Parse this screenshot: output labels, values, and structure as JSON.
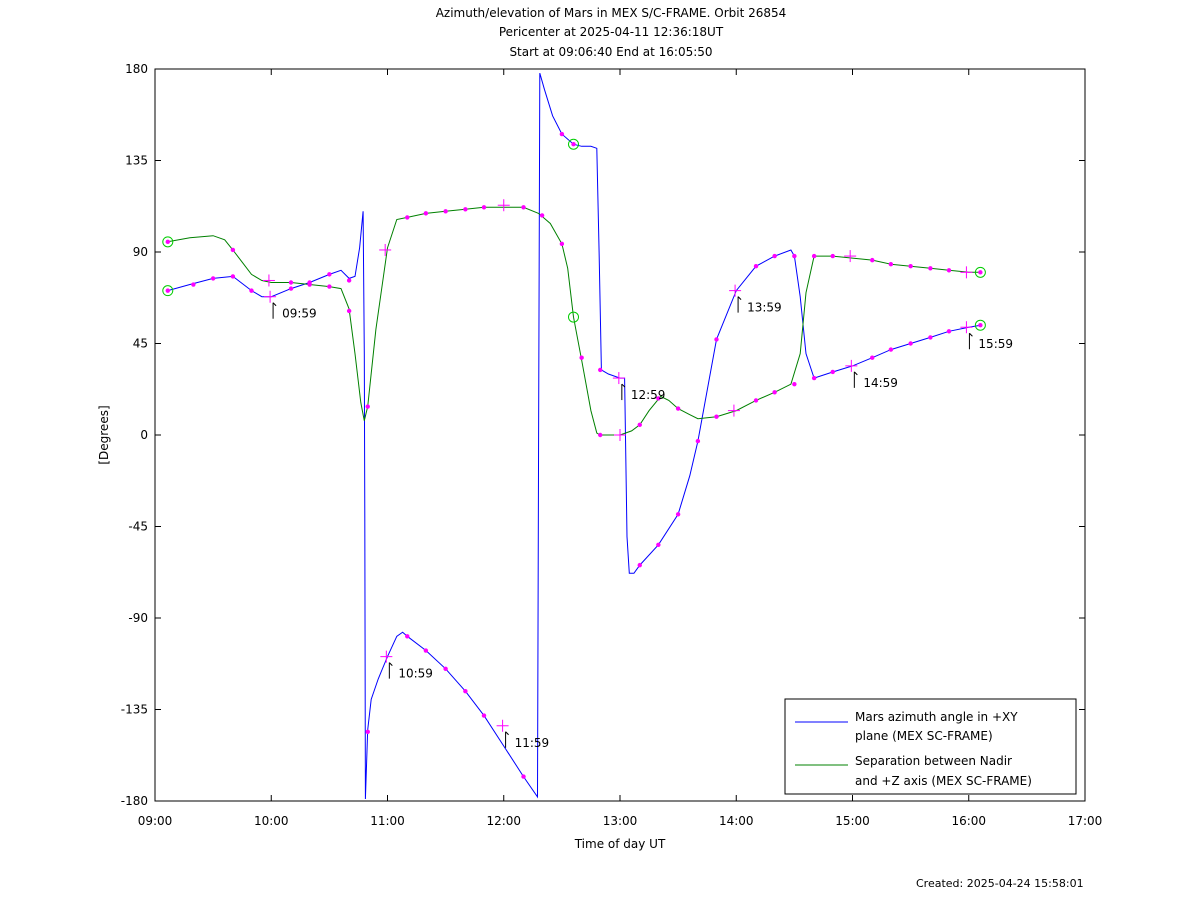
{
  "title": {
    "lines": [
      "Azimuth/elevation of Mars in MEX S/C-FRAME.  Orbit 26854",
      "Pericenter at 2025-04-11 12:36:18UT",
      "Start at 09:06:40 End at 16:05:50"
    ]
  },
  "footer": {
    "created": "Created: 2025-04-24 15:58:01"
  },
  "chart_data": {
    "type": "line",
    "xlabel": "Time of day UT",
    "ylabel": "[Degrees]",
    "x_unit": "hours of day UT",
    "xlim": [
      9.0,
      17.0
    ],
    "ylim": [
      -180,
      180
    ],
    "x_ticks": [
      9,
      10,
      11,
      12,
      13,
      14,
      15,
      16,
      17
    ],
    "x_tick_labels": [
      "09:00",
      "10:00",
      "11:00",
      "12:00",
      "13:00",
      "14:00",
      "15:00",
      "16:00",
      "17:00"
    ],
    "y_ticks": [
      180,
      135,
      90,
      45,
      0,
      -45,
      -90,
      -135,
      -180
    ],
    "y_tick_labels": [
      "180",
      "135",
      "90",
      "45",
      "0",
      "-45",
      "-90",
      "-135",
      "-180"
    ],
    "legend_position": "bottom-right",
    "series": [
      {
        "name": "Mars azimuth angle in +XY plane (MEX SC-FRAME)",
        "legend_lines": [
          "Mars azimuth angle in +XY",
          "plane (MEX SC-FRAME)"
        ],
        "color": "#0000ff",
        "points": [
          [
            9.11,
            71
          ],
          [
            9.3,
            74
          ],
          [
            9.5,
            77
          ],
          [
            9.67,
            78
          ],
          [
            9.83,
            71
          ],
          [
            9.92,
            68
          ],
          [
            10.0,
            68
          ],
          [
            10.17,
            72
          ],
          [
            10.33,
            75
          ],
          [
            10.5,
            79
          ],
          [
            10.6,
            81
          ],
          [
            10.67,
            77
          ],
          [
            10.72,
            78
          ],
          [
            10.76,
            92
          ],
          [
            10.79,
            110
          ],
          [
            10.8,
            40
          ],
          [
            10.805,
            -40
          ],
          [
            10.81,
            -179
          ],
          [
            10.83,
            -145
          ],
          [
            10.86,
            -130
          ],
          [
            10.92,
            -120
          ],
          [
            11.0,
            -109
          ],
          [
            11.08,
            -99
          ],
          [
            11.13,
            -97
          ],
          [
            11.17,
            -99
          ],
          [
            11.33,
            -106
          ],
          [
            11.5,
            -115
          ],
          [
            11.67,
            -126
          ],
          [
            11.83,
            -138
          ],
          [
            12.0,
            -153
          ],
          [
            12.17,
            -168
          ],
          [
            12.29,
            -178
          ],
          [
            12.3,
            0
          ],
          [
            12.31,
            178
          ],
          [
            12.35,
            170
          ],
          [
            12.42,
            157
          ],
          [
            12.5,
            148
          ],
          [
            12.6,
            143
          ],
          [
            12.67,
            142
          ],
          [
            12.75,
            142
          ],
          [
            12.8,
            141
          ],
          [
            12.82,
            90
          ],
          [
            12.84,
            32
          ],
          [
            12.9,
            30
          ],
          [
            13.0,
            28
          ],
          [
            13.04,
            28
          ],
          [
            13.06,
            -50
          ],
          [
            13.08,
            -68
          ],
          [
            13.12,
            -68
          ],
          [
            13.17,
            -64
          ],
          [
            13.33,
            -54
          ],
          [
            13.5,
            -39
          ],
          [
            13.6,
            -20
          ],
          [
            13.67,
            -3
          ],
          [
            13.83,
            47
          ],
          [
            14.0,
            71
          ],
          [
            14.17,
            83
          ],
          [
            14.33,
            88
          ],
          [
            14.47,
            91
          ],
          [
            14.5,
            88
          ],
          [
            14.55,
            68
          ],
          [
            14.6,
            40
          ],
          [
            14.67,
            28
          ],
          [
            14.83,
            31
          ],
          [
            15.0,
            34
          ],
          [
            15.17,
            38
          ],
          [
            15.33,
            42
          ],
          [
            15.5,
            45
          ],
          [
            15.67,
            48
          ],
          [
            15.83,
            51
          ],
          [
            16.0,
            53
          ],
          [
            16.1,
            54
          ]
        ],
        "markers": [
          [
            9.11,
            71
          ],
          [
            9.33,
            74
          ],
          [
            9.5,
            77
          ],
          [
            9.67,
            78
          ],
          [
            9.83,
            71
          ],
          [
            10.17,
            72
          ],
          [
            10.33,
            75
          ],
          [
            10.5,
            79
          ],
          [
            10.67,
            76
          ],
          [
            10.83,
            -146
          ],
          [
            11.17,
            -99
          ],
          [
            11.33,
            -106
          ],
          [
            11.5,
            -115
          ],
          [
            11.67,
            -126
          ],
          [
            11.83,
            -138
          ],
          [
            12.17,
            -168
          ],
          [
            12.5,
            148
          ],
          [
            12.6,
            143
          ],
          [
            12.83,
            32
          ],
          [
            13.17,
            -64
          ],
          [
            13.33,
            -54
          ],
          [
            13.5,
            -39
          ],
          [
            13.67,
            -3
          ],
          [
            13.83,
            47
          ],
          [
            14.17,
            83
          ],
          [
            14.33,
            88
          ],
          [
            14.5,
            88
          ],
          [
            14.67,
            28
          ],
          [
            14.83,
            31
          ],
          [
            15.17,
            38
          ],
          [
            15.33,
            42
          ],
          [
            15.5,
            45
          ],
          [
            15.67,
            48
          ],
          [
            15.83,
            51
          ],
          [
            16.1,
            54
          ]
        ]
      },
      {
        "name": "Separation between Nadir and +Z axis (MEX SC-FRAME)",
        "legend_lines": [
          "Separation between Nadir",
          "and +Z axis (MEX SC-FRAME)"
        ],
        "color": "#008000",
        "points": [
          [
            9.11,
            95
          ],
          [
            9.3,
            97
          ],
          [
            9.5,
            98
          ],
          [
            9.6,
            96
          ],
          [
            9.67,
            91
          ],
          [
            9.75,
            85
          ],
          [
            9.83,
            79
          ],
          [
            9.92,
            76
          ],
          [
            10.0,
            75
          ],
          [
            10.17,
            75
          ],
          [
            10.33,
            74
          ],
          [
            10.5,
            73
          ],
          [
            10.6,
            72
          ],
          [
            10.67,
            62
          ],
          [
            10.72,
            40
          ],
          [
            10.77,
            16
          ],
          [
            10.8,
            7
          ],
          [
            10.83,
            14
          ],
          [
            10.9,
            52
          ],
          [
            11.0,
            92
          ],
          [
            11.08,
            106
          ],
          [
            11.17,
            107
          ],
          [
            11.33,
            109
          ],
          [
            11.5,
            110
          ],
          [
            11.67,
            111
          ],
          [
            11.83,
            112
          ],
          [
            12.0,
            112
          ],
          [
            12.17,
            112
          ],
          [
            12.3,
            109
          ],
          [
            12.4,
            104
          ],
          [
            12.5,
            94
          ],
          [
            12.55,
            82
          ],
          [
            12.6,
            58
          ],
          [
            12.67,
            37
          ],
          [
            12.75,
            12
          ],
          [
            12.8,
            1
          ],
          [
            12.83,
            0
          ],
          [
            13.0,
            0
          ],
          [
            13.1,
            2
          ],
          [
            13.17,
            5
          ],
          [
            13.25,
            12
          ],
          [
            13.35,
            19
          ],
          [
            13.42,
            17
          ],
          [
            13.5,
            13
          ],
          [
            13.6,
            10
          ],
          [
            13.67,
            8
          ],
          [
            13.83,
            9
          ],
          [
            14.0,
            12
          ],
          [
            14.17,
            17
          ],
          [
            14.33,
            21
          ],
          [
            14.47,
            25
          ],
          [
            14.55,
            40
          ],
          [
            14.6,
            70
          ],
          [
            14.67,
            88
          ],
          [
            14.83,
            88
          ],
          [
            15.0,
            87
          ],
          [
            15.17,
            86
          ],
          [
            15.33,
            84
          ],
          [
            15.5,
            83
          ],
          [
            15.67,
            82
          ],
          [
            15.83,
            81
          ],
          [
            16.0,
            80
          ],
          [
            16.1,
            80
          ]
        ],
        "markers": [
          [
            9.11,
            95
          ],
          [
            9.67,
            91
          ],
          [
            10.17,
            75
          ],
          [
            10.33,
            74
          ],
          [
            10.5,
            73
          ],
          [
            10.67,
            61
          ],
          [
            10.83,
            14
          ],
          [
            11.17,
            107
          ],
          [
            11.33,
            109
          ],
          [
            11.5,
            110
          ],
          [
            11.67,
            111
          ],
          [
            11.83,
            112
          ],
          [
            12.17,
            112
          ],
          [
            12.33,
            108
          ],
          [
            12.5,
            94
          ],
          [
            12.67,
            38
          ],
          [
            12.83,
            0
          ],
          [
            13.17,
            5
          ],
          [
            13.33,
            18
          ],
          [
            13.5,
            13
          ],
          [
            13.83,
            9
          ],
          [
            14.17,
            17
          ],
          [
            14.33,
            21
          ],
          [
            14.5,
            25
          ],
          [
            14.67,
            88
          ],
          [
            14.83,
            88
          ],
          [
            15.17,
            86
          ],
          [
            15.33,
            84
          ],
          [
            15.5,
            83
          ],
          [
            15.67,
            82
          ],
          [
            15.83,
            81
          ],
          [
            16.1,
            80
          ]
        ]
      }
    ],
    "crosses": [
      [
        9.98,
        76
      ],
      [
        10.98,
        91
      ],
      [
        12.0,
        113
      ],
      [
        13.0,
        0
      ],
      [
        13.98,
        12
      ],
      [
        14.98,
        88
      ],
      [
        15.98,
        80
      ],
      [
        9.99,
        68
      ],
      [
        10.99,
        -109
      ],
      [
        11.99,
        -143
      ],
      [
        12.99,
        28
      ],
      [
        13.99,
        71
      ],
      [
        14.99,
        34
      ],
      [
        15.98,
        53
      ]
    ],
    "circles": [
      [
        9.11,
        95
      ],
      [
        9.11,
        71
      ],
      [
        12.6,
        143
      ],
      [
        12.6,
        58
      ],
      [
        16.1,
        80
      ],
      [
        16.1,
        54
      ]
    ],
    "annotations": [
      {
        "text": "09:59",
        "x": 9.99,
        "y": 68
      },
      {
        "text": "10:59",
        "x": 10.99,
        "y": -109
      },
      {
        "text": "11:59",
        "x": 11.99,
        "y": -143
      },
      {
        "text": "12:59",
        "x": 12.99,
        "y": 28
      },
      {
        "text": "13:59",
        "x": 13.99,
        "y": 71
      },
      {
        "text": "14:59",
        "x": 14.99,
        "y": 34
      },
      {
        "text": "15:59",
        "x": 15.98,
        "y": 53
      }
    ]
  }
}
